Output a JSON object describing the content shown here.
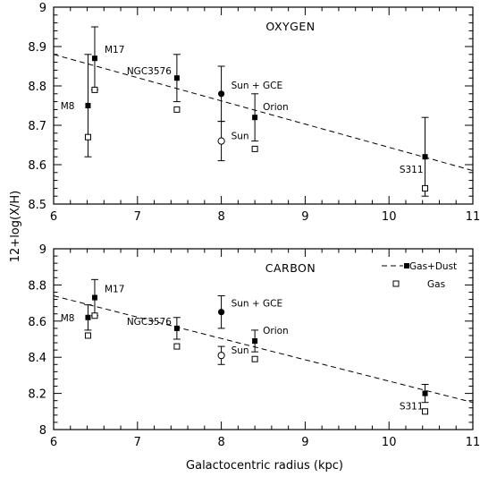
{
  "figure": {
    "xlabel": "Galactocentric radius (kpc)",
    "ylabel": "12+log(X/H)"
  },
  "chart_data": [
    {
      "type": "scatter",
      "title": "OXYGEN",
      "xlim": [
        6,
        11
      ],
      "ylim": [
        8.5,
        9.0
      ],
      "xticks": [
        6,
        7,
        8,
        9,
        10,
        11
      ],
      "yticks": [
        8.5,
        8.6,
        8.7,
        8.8,
        8.9,
        9.0
      ],
      "ytick_labels": [
        "8.5",
        "8.6",
        "8.7",
        "8.8",
        "8.9",
        "9"
      ],
      "fit_line": {
        "style": "dashed",
        "x": [
          6,
          11
        ],
        "y": [
          8.88,
          8.585
        ]
      },
      "series": [
        {
          "marker": "filled-square",
          "points": [
            {
              "label": "M8",
              "x": 6.41,
              "y": 8.75,
              "err_low": 8.62,
              "err_high": 8.88
            },
            {
              "label": "M17",
              "x": 6.49,
              "y": 8.87,
              "err_low": 8.79,
              "err_high": 8.95
            },
            {
              "label": "NGC3576",
              "x": 7.47,
              "y": 8.82,
              "err_low": 8.76,
              "err_high": 8.88
            },
            {
              "label": "Orion",
              "x": 8.4,
              "y": 8.72,
              "err_low": 8.66,
              "err_high": 8.78
            },
            {
              "label": "S311",
              "x": 10.43,
              "y": 8.62,
              "err_low": 8.52,
              "err_high": 8.72
            }
          ]
        },
        {
          "marker": "open-square",
          "points": [
            {
              "x": 6.41,
              "y": 8.67
            },
            {
              "x": 6.49,
              "y": 8.79
            },
            {
              "x": 7.47,
              "y": 8.74
            },
            {
              "x": 8.4,
              "y": 8.64
            },
            {
              "x": 10.43,
              "y": 8.54
            }
          ]
        },
        {
          "marker": "filled-circle",
          "points": [
            {
              "label": "Sun + GCE",
              "x": 8.0,
              "y": 8.78,
              "err_low": 8.71,
              "err_high": 8.85
            }
          ]
        },
        {
          "marker": "open-circle",
          "points": [
            {
              "label": "Sun",
              "x": 8.0,
              "y": 8.66,
              "err_low": 8.61,
              "err_high": 8.71
            }
          ]
        }
      ]
    },
    {
      "type": "scatter",
      "title": "CARBON",
      "xlim": [
        6,
        11
      ],
      "ylim": [
        8.0,
        9.0
      ],
      "xticks": [
        6,
        7,
        8,
        9,
        10,
        11
      ],
      "yticks": [
        8.0,
        8.2,
        8.4,
        8.6,
        8.8,
        9.0
      ],
      "ytick_labels": [
        "8",
        "8.2",
        "8.4",
        "8.6",
        "8.8",
        "9"
      ],
      "fit_line": {
        "style": "dashed",
        "x": [
          6,
          11
        ],
        "y": [
          8.74,
          8.15
        ]
      },
      "legend": {
        "position": "top-right",
        "entries": [
          {
            "name": "Gas+Dust",
            "marker": "filled-square",
            "line": "dashed"
          },
          {
            "name": "Gas",
            "marker": "open-square"
          }
        ]
      },
      "series": [
        {
          "name": "Gas+Dust",
          "marker": "filled-square",
          "points": [
            {
              "label": "M8",
              "x": 6.41,
              "y": 8.62,
              "err_low": 8.55,
              "err_high": 8.69
            },
            {
              "label": "M17",
              "x": 6.49,
              "y": 8.73,
              "err_low": 8.63,
              "err_high": 8.83
            },
            {
              "label": "NGC3576",
              "x": 7.47,
              "y": 8.56,
              "err_low": 8.5,
              "err_high": 8.62
            },
            {
              "label": "Orion",
              "x": 8.4,
              "y": 8.49,
              "err_low": 8.43,
              "err_high": 8.55
            },
            {
              "label": "S311",
              "x": 10.43,
              "y": 8.2,
              "err_low": 8.15,
              "err_high": 8.25
            }
          ]
        },
        {
          "name": "Gas",
          "marker": "open-square",
          "points": [
            {
              "x": 6.41,
              "y": 8.52
            },
            {
              "x": 6.49,
              "y": 8.63
            },
            {
              "x": 7.47,
              "y": 8.46
            },
            {
              "x": 8.4,
              "y": 8.39
            },
            {
              "x": 10.43,
              "y": 8.1
            }
          ]
        },
        {
          "marker": "filled-circle",
          "points": [
            {
              "label": "Sun + GCE",
              "x": 8.0,
              "y": 8.65,
              "err_low": 8.56,
              "err_high": 8.74
            }
          ]
        },
        {
          "marker": "open-circle",
          "points": [
            {
              "label": "Sun",
              "x": 8.0,
              "y": 8.41,
              "err_low": 8.36,
              "err_high": 8.46
            }
          ]
        }
      ]
    }
  ]
}
